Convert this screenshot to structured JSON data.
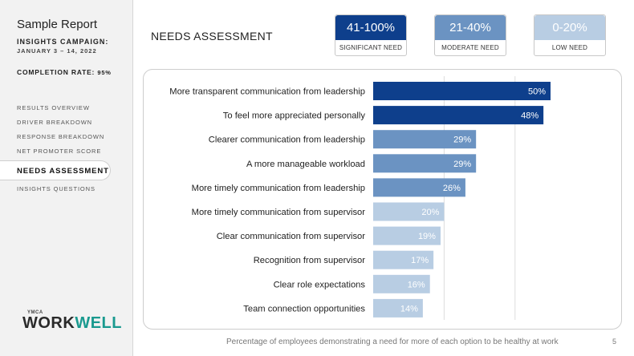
{
  "sidebar": {
    "title": "Sample Report",
    "campaign_label": "INSIGHTS CAMPAIGN:",
    "campaign_dates": "JANUARY 3 – 14, 2022",
    "completion_label": "COMPLETION RATE:",
    "completion_value": "95%",
    "nav": [
      {
        "label": "RESULTS OVERVIEW",
        "active": false
      },
      {
        "label": "DRIVER BREAKDOWN",
        "active": false
      },
      {
        "label": "RESPONSE BREAKDOWN",
        "active": false
      },
      {
        "label": "NET PROMOTER SCORE",
        "active": false
      },
      {
        "label": "NEEDS ASSESSMENT",
        "active": true
      },
      {
        "label": "INSIGHTS QUESTIONS",
        "active": false
      }
    ],
    "logo_small": "YMCA",
    "logo_part1": "WORK",
    "logo_part2": "WELL"
  },
  "header": {
    "title": "NEEDS ASSESSMENT"
  },
  "legend": [
    {
      "range": "41-100%",
      "label": "SIGNIFICANT NEED",
      "color": "#0e3f8c"
    },
    {
      "range": "21-40%",
      "label": "MODERATE NEED",
      "color": "#6b93c2"
    },
    {
      "range": "0-20%",
      "label": "LOW NEED",
      "color": "#b8cde3"
    }
  ],
  "chart_data": {
    "type": "bar",
    "orientation": "horizontal",
    "categories": [
      "More transparent communication from leadership",
      "To feel more appreciated personally",
      "Clearer communication from leadership",
      "A more manageable workload",
      "More timely communication from leadership",
      "More timely communication from supervisor",
      "Clear communication from supervisor",
      "Recognition from supervisor",
      "Clear role expectations",
      "Team connection opportunities"
    ],
    "values": [
      50,
      48,
      29,
      29,
      26,
      20,
      19,
      17,
      16,
      14
    ],
    "value_labels": [
      "50%",
      "48%",
      "29%",
      "29%",
      "26%",
      "20%",
      "19%",
      "17%",
      "16%",
      "14%"
    ],
    "xlim": [
      0,
      60
    ],
    "gridlines": [
      20,
      40
    ],
    "colors": {
      "significant": "#0e3f8c",
      "moderate": "#6b93c2",
      "low": "#b8cde3"
    }
  },
  "footer": {
    "note": "Percentage of employees demonstrating a need for more of each option to be healthy at work",
    "page": "5"
  }
}
